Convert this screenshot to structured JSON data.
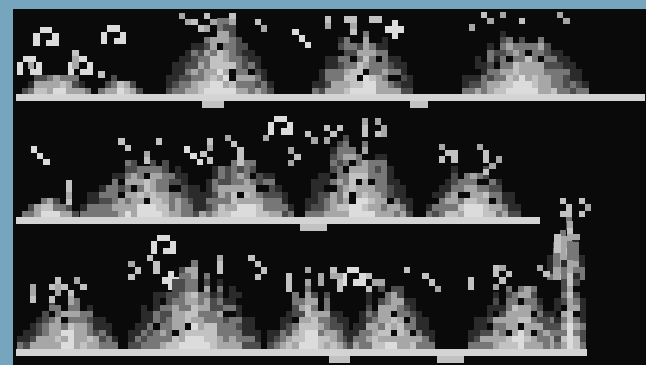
{
  "window": {
    "title": "",
    "frame_color": "#76a6bd",
    "frame_color_light": "#8fb8cc",
    "margin_color": "#ffffff",
    "background_color": "#0a0a0a"
  },
  "sprite_sheet": {
    "description_icon": "pixel-fire-sprite-sheet",
    "rows": 3,
    "frames_per_row": 5,
    "palette": {
      "floor": "#d4d4d4",
      "bright": "#dcdcdc",
      "light": "#c2c2c2",
      "mid": "#a7a7a7",
      "dark": "#777777",
      "shadow": "#4c4c4c",
      "deep": "#2b2b2b"
    }
  }
}
